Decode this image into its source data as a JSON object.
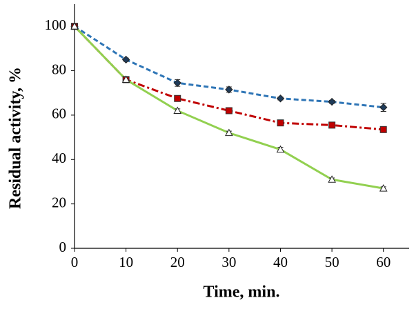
{
  "chart_data": {
    "type": "line",
    "x_label": "Time, min.",
    "y_label": "Residual activity, %",
    "x": [
      0,
      10,
      20,
      30,
      40,
      50,
      60
    ],
    "xlim": [
      0,
      65
    ],
    "xticks": [
      0,
      10,
      20,
      30,
      40,
      50,
      60
    ],
    "ylim": [
      0,
      110
    ],
    "yticks": [
      0,
      20,
      40,
      60,
      80,
      100
    ],
    "grid": false,
    "series": [
      {
        "color": "#2e75b6",
        "dash": "dashed",
        "marker": "diamond",
        "marker_color": "#1f3b5a",
        "values": [
          100,
          85,
          74.5,
          71.5,
          67.5,
          66,
          63.5
        ],
        "errors": [
          1,
          0.7,
          1.5,
          1.2,
          0.7,
          0.7,
          1.8
        ]
      },
      {
        "color": "#c00000",
        "dash": "dashdot",
        "marker": "square",
        "marker_color": "#c00000",
        "values": [
          100,
          76,
          67.5,
          62,
          56.5,
          55.5,
          53.5
        ],
        "errors": [
          1,
          1,
          0.8,
          0.8,
          0.8,
          0.7,
          0.8
        ]
      },
      {
        "color": "#92d050",
        "dash": "solid",
        "marker": "triangle",
        "marker_color": "#ffffff",
        "values": [
          100,
          76,
          62,
          52,
          44.5,
          31,
          27
        ],
        "errors": [
          1,
          1.2,
          0.8,
          0.8,
          1,
          0.7,
          0.7
        ]
      }
    ]
  }
}
